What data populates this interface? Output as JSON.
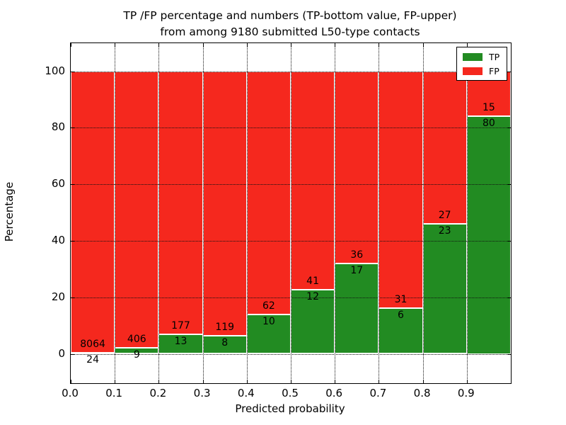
{
  "title": {
    "line1": "TP /FP percentage and numbers (TP-bottom value, FP-upper)",
    "line2": "from among 9180 submitted L50-type contacts"
  },
  "axes": {
    "xlabel": "Predicted probability",
    "ylabel": "Percentage",
    "xtick_labels": [
      "0.0",
      "0.1",
      "0.2",
      "0.3",
      "0.4",
      "0.5",
      "0.6",
      "0.7",
      "0.8",
      "0.9"
    ],
    "ytick_labels": [
      "0",
      "20",
      "40",
      "60",
      "80",
      "100"
    ],
    "ytick_values": [
      0,
      20,
      40,
      60,
      80,
      100
    ]
  },
  "legend": {
    "items": [
      {
        "label": "TP",
        "color": "#228b22"
      },
      {
        "label": "FP",
        "color": "#f5281e"
      }
    ]
  },
  "colors": {
    "tp_green": "#228b22",
    "fp_red": "#f5281e",
    "grid": "#111111",
    "text": "#000000"
  },
  "chart_data": {
    "type": "bar",
    "stacked": true,
    "normalized": "each bar scaled to 100%",
    "title": "TP /FP percentage and numbers (TP-bottom value, FP-upper) from among 9180 submitted L50-type contacts",
    "xlabel": "Predicted probability",
    "ylabel": "Percentage",
    "total_contacts": 9180,
    "bin_width": 0.1,
    "bin_starts": [
      0.0,
      0.1,
      0.2,
      0.3,
      0.4,
      0.5,
      0.6,
      0.7,
      0.8,
      0.9
    ],
    "series": [
      {
        "name": "TP",
        "color": "#228b22",
        "counts": [
          24,
          9,
          13,
          8,
          10,
          12,
          17,
          6,
          23,
          80
        ]
      },
      {
        "name": "FP",
        "color": "#f5281e",
        "counts": [
          8064,
          406,
          177,
          119,
          62,
          41,
          36,
          31,
          27,
          15
        ]
      }
    ],
    "tp_percent": [
      0.3,
      2.2,
      6.8,
      6.3,
      13.9,
      22.6,
      32.1,
      16.2,
      46.0,
      84.2
    ],
    "xlim": [
      0.0,
      1.0
    ],
    "ylim": [
      -10,
      110
    ],
    "grid": "dotted, x at every 0.1, y at every 20",
    "legend_position": "upper right"
  }
}
